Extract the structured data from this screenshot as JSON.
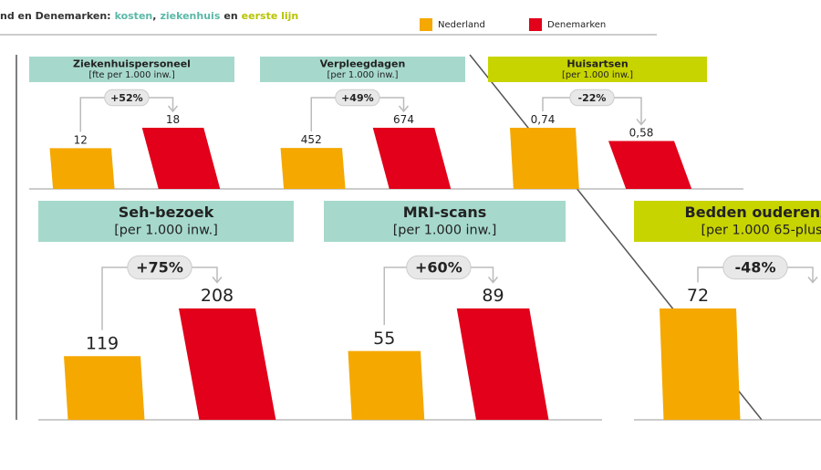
{
  "header": {
    "parts": [
      {
        "text": "nd en Denemarken:",
        "color": "#333333"
      },
      {
        "text": "kosten",
        "color": "#5bb8a8"
      },
      {
        "text": ",",
        "color": "#333333"
      },
      {
        "text": "ziekenhuis",
        "color": "#5bb8a8"
      },
      {
        "text": "en",
        "color": "#333333"
      },
      {
        "text": "eerste lijn",
        "color": "#b8c400"
      }
    ]
  },
  "legend": [
    {
      "name": "Nederland",
      "color": "#f5a800"
    },
    {
      "name": "Denemarken",
      "color": "#e2001a"
    }
  ],
  "chart_data": [
    {
      "type": "bar",
      "title": "Ziekenhuispersoneel",
      "subtitle": "[fte per 1.000 inw.]",
      "header_color": "#a6d9cc",
      "annotation": "+52%",
      "series": [
        {
          "name": "Nederland",
          "color": "#f5a800",
          "values": [
            12
          ]
        },
        {
          "name": "Denemarken",
          "color": "#e2001a",
          "values": [
            18
          ]
        }
      ]
    },
    {
      "type": "bar",
      "title": "Verpleegdagen",
      "subtitle": "[per 1.000 inw.]",
      "header_color": "#a6d9cc",
      "annotation": "+49%",
      "series": [
        {
          "name": "Nederland",
          "color": "#f5a800",
          "values": [
            452
          ]
        },
        {
          "name": "Denemarken",
          "color": "#e2001a",
          "values": [
            674
          ]
        }
      ]
    },
    {
      "type": "bar",
      "title": "Huisartsen",
      "subtitle": "[per 1.000 inw.]",
      "header_color": "#c8d400",
      "annotation": "-22%",
      "series": [
        {
          "name": "Nederland",
          "color": "#f5a800",
          "values": [
            0.74
          ],
          "value_labels": [
            "0,74"
          ]
        },
        {
          "name": "Denemarken",
          "color": "#e2001a",
          "values": [
            0.58
          ],
          "value_labels": [
            "0,58"
          ]
        }
      ]
    },
    {
      "type": "bar",
      "title": "Seh-bezoek",
      "subtitle": "[per 1.000 inw.]",
      "header_color": "#a6d9cc",
      "annotation": "+75%",
      "series": [
        {
          "name": "Nederland",
          "color": "#f5a800",
          "values": [
            119
          ]
        },
        {
          "name": "Denemarken",
          "color": "#e2001a",
          "values": [
            208
          ]
        }
      ]
    },
    {
      "type": "bar",
      "title": "MRI-scans",
      "subtitle": "[per 1.000 inw.]",
      "header_color": "#a6d9cc",
      "annotation": "+60%",
      "series": [
        {
          "name": "Nederland",
          "color": "#f5a800",
          "values": [
            55
          ]
        },
        {
          "name": "Denemarken",
          "color": "#e2001a",
          "values": [
            89
          ]
        }
      ]
    },
    {
      "type": "bar",
      "title": "Bedden ouderenzo",
      "subtitle": "[per 1.000 65-plus",
      "header_color": "#c8d400",
      "annotation": "-48%",
      "series": [
        {
          "name": "Nederland",
          "color": "#f5a800",
          "values": [
            72
          ]
        }
      ]
    }
  ]
}
